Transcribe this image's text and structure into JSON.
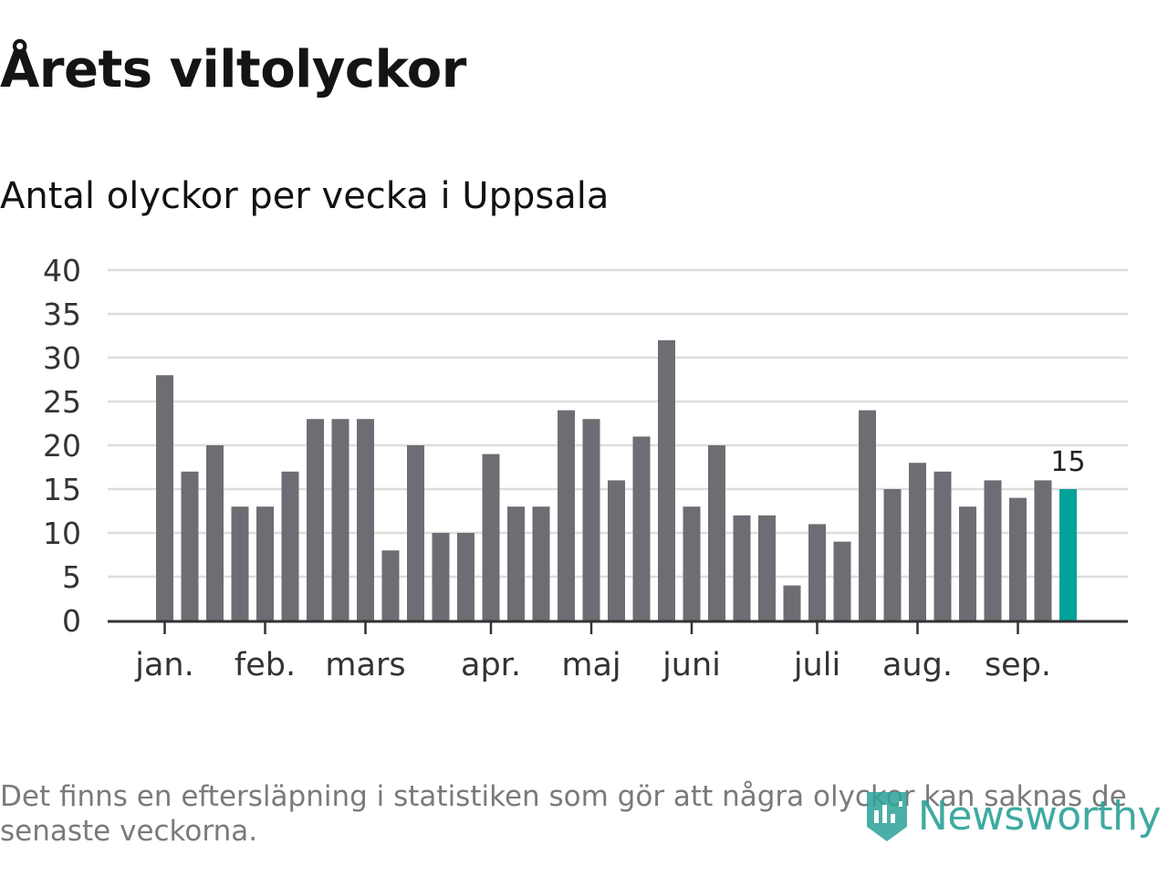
{
  "title": "Årets viltolyckor",
  "subtitle": "Antal olyckor per vecka i Uppsala",
  "footnote": "Det finns en eftersläpning i statistiken som gör att några olyckor kan saknas de senaste veckorna.",
  "brand": {
    "name": "Newsworthy",
    "icon": "newsworthy-logo-icon"
  },
  "colors": {
    "bar": "#6e6d73",
    "highlight": "#00a39a",
    "grid": "#dddddd",
    "axis": "#333333",
    "brand": "#2fa39a"
  },
  "chart_data": {
    "type": "bar",
    "title": "Årets viltolyckor",
    "subtitle": "Antal olyckor per vecka i Uppsala",
    "xlabel": "",
    "ylabel": "",
    "ylim": [
      0,
      40
    ],
    "yticks": [
      0,
      5,
      10,
      15,
      20,
      25,
      30,
      35,
      40
    ],
    "grid": true,
    "values": [
      28,
      17,
      20,
      13,
      13,
      17,
      23,
      23,
      23,
      8,
      20,
      10,
      10,
      19,
      13,
      13,
      24,
      23,
      16,
      21,
      32,
      13,
      20,
      12,
      12,
      4,
      11,
      9,
      24,
      15,
      18,
      17,
      13,
      16,
      14,
      16,
      15
    ],
    "month_ticks": [
      {
        "label": "jan.",
        "week_index": 0
      },
      {
        "label": "feb.",
        "week_index": 4
      },
      {
        "label": "mars",
        "week_index": 8
      },
      {
        "label": "apr.",
        "week_index": 13
      },
      {
        "label": "maj",
        "week_index": 17
      },
      {
        "label": "juni",
        "week_index": 21
      },
      {
        "label": "juli",
        "week_index": 26
      },
      {
        "label": "aug.",
        "week_index": 30
      },
      {
        "label": "sep.",
        "week_index": 34
      }
    ],
    "highlight": {
      "week_index": 36,
      "label": "15"
    }
  }
}
